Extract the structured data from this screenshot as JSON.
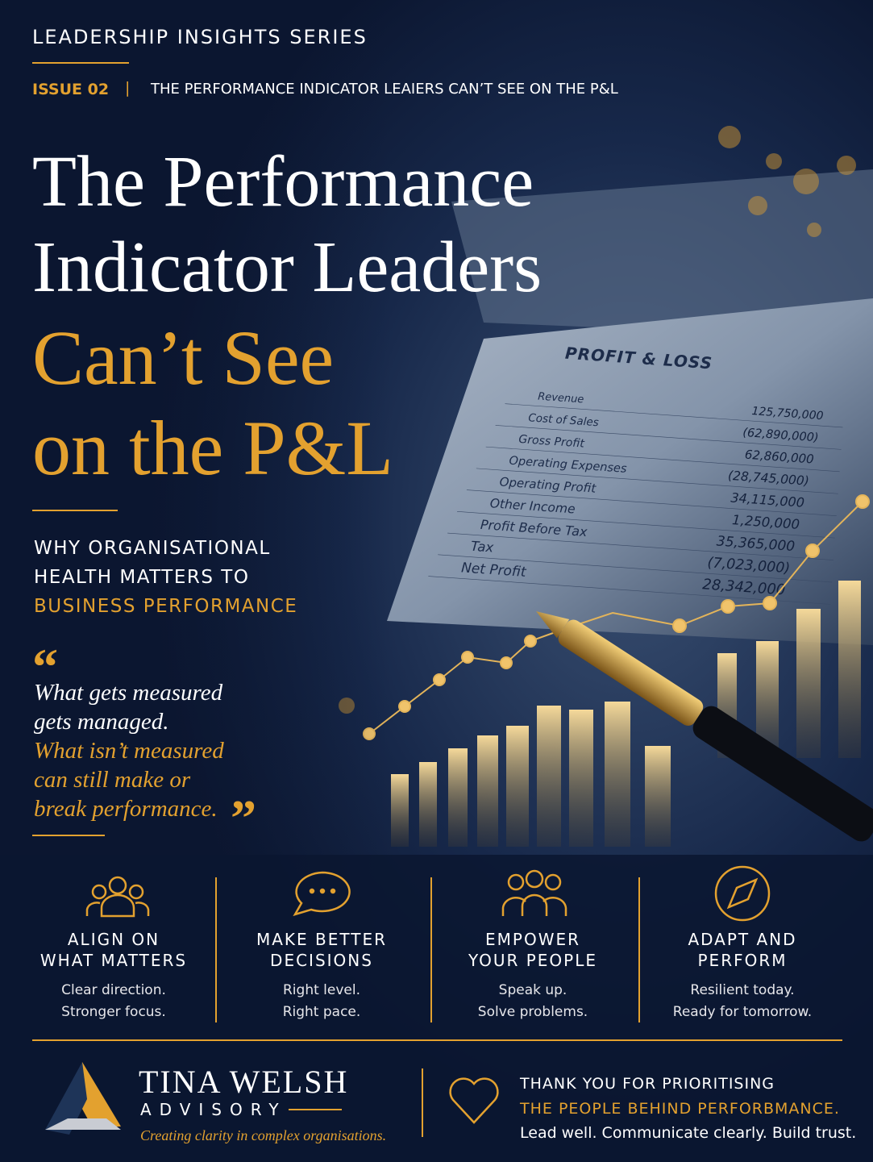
{
  "header": {
    "series": "LEADERSHIP INSIGHTS SERIES",
    "issue": "ISSUE 02",
    "separator": "|",
    "issue_title": "THE PERFORMANCE INDICATOR LEAIERS CAN’T SEE ON THE P&L"
  },
  "title": {
    "lines": [
      "The Performance",
      "Indicator Leaders"
    ],
    "highlight_lines": [
      "Can’t See",
      "on the P&L"
    ]
  },
  "subtitle": {
    "lines": [
      "WHY ORGANISATIONAL",
      "HEALTH MATTERS TO"
    ],
    "highlight": "BUSINESS PERFORMANCE"
  },
  "quote": {
    "open_mark": "“",
    "close_mark": "”",
    "lines": [
      "What gets measured",
      "gets managed."
    ],
    "highlight_lines": [
      "What isn’t measured",
      "can still make or",
      "break performance."
    ]
  },
  "statement": {
    "heading": "PROFIT & LOSS",
    "rows": [
      {
        "label": "Revenue",
        "value": "125,750,000"
      },
      {
        "label": "Cost of Sales",
        "value": "(62,890,000)"
      },
      {
        "label": "Gross Profit",
        "value": "62,860,000"
      },
      {
        "label": "Operating Expenses",
        "value": "(28,745,000)"
      },
      {
        "label": "Operating Profit",
        "value": "34,115,000"
      },
      {
        "label": "Other Income",
        "value": "1,250,000"
      },
      {
        "label": "Profit Before Tax",
        "value": "35,365,000"
      },
      {
        "label": "Tax",
        "value": "(7,023,000)"
      },
      {
        "label": "Net Profit",
        "value": "28,342,000"
      }
    ]
  },
  "pillars": [
    {
      "title": [
        "ALIGN ON",
        "WHAT MATTERS"
      ],
      "description": [
        "Clear direction.",
        "Stronger focus."
      ]
    },
    {
      "title": [
        "MAKE BETTER",
        "DECISIONS"
      ],
      "description": [
        "Right level.",
        "Right pace."
      ]
    },
    {
      "title": [
        "EMPOWER",
        "YOUR PEOPLE"
      ],
      "description": [
        "Speak up.",
        "Solve problems."
      ]
    },
    {
      "title": [
        "ADAPT AND",
        "PERFORM"
      ],
      "description": [
        "Resilient today.",
        "Ready for tomorrow."
      ]
    }
  ],
  "footer": {
    "brand": "TINA WELSH",
    "brand_sub": "ADVISORY",
    "tagline": "Creating clarity in complex organisations.",
    "thanks": "THANK YOU FOR PRIORITISING",
    "thanks_highlight": "THE PEOPLE BEHIND PERFORBMANCE.",
    "closing": "Lead well. Communicate clearly. Build trust."
  }
}
